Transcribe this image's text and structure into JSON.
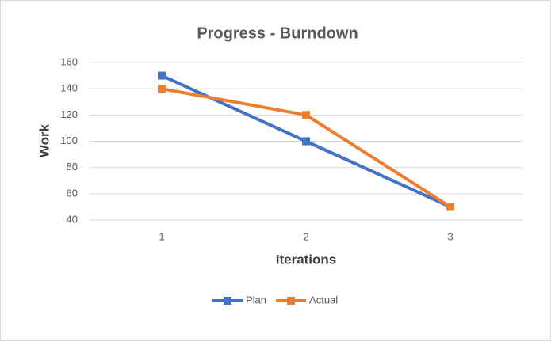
{
  "chart_data": {
    "type": "line",
    "title": "Progress - Burndown",
    "x_label": "Iterations",
    "y_label": "Work",
    "categories": [
      "1",
      "2",
      "3"
    ],
    "series": [
      {
        "name": "Plan",
        "color": "#4472c4",
        "values": [
          150,
          100,
          50
        ]
      },
      {
        "name": "Actual",
        "color": "#ed7d31",
        "values": [
          140,
          120,
          50
        ]
      }
    ],
    "ylim": [
      40,
      160
    ],
    "yticks": [
      40,
      60,
      80,
      100,
      120,
      140,
      160
    ],
    "grid": true,
    "legend": "bottom"
  }
}
